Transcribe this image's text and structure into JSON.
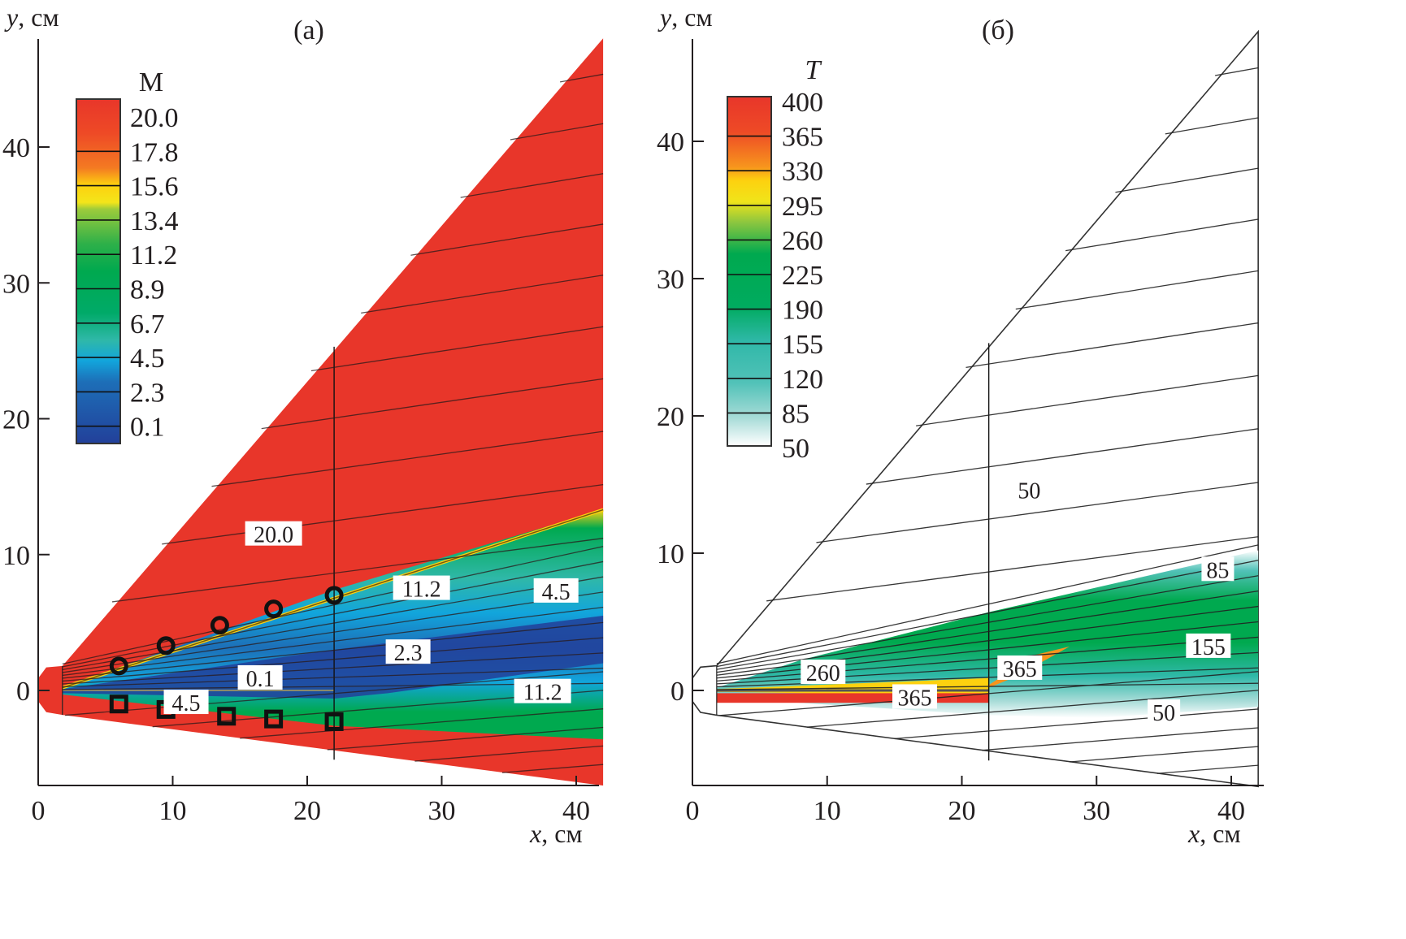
{
  "chart_data": [
    {
      "type": "heatmap",
      "panel_label": "(a)",
      "quantity": "M",
      "xlabel_var": "x",
      "xlabel_unit": ", см",
      "ylabel_var": "y",
      "ylabel_unit": ", см",
      "xlim": [
        0,
        42
      ],
      "ylim": [
        -7,
        48
      ],
      "xticks": [
        "0",
        "10",
        "20",
        "30",
        "40"
      ],
      "yticks": [
        "0",
        "10",
        "20",
        "30",
        "40"
      ],
      "xtick_values": [
        0,
        10,
        20,
        30,
        40
      ],
      "ytick_values": [
        0,
        10,
        20,
        30,
        40
      ],
      "colorbar": {
        "title": "M",
        "levels": [
          "20.0",
          "17.8",
          "15.6",
          "13.4",
          "11.2",
          "8.9",
          "6.7",
          "4.5",
          "2.3",
          "0.1"
        ],
        "colors": [
          "#e8362a",
          "#f26b24",
          "#fdd10f",
          "#7dc242",
          "#00a94f",
          "#00a95c",
          "#2fb8a8",
          "#12a5dc",
          "#1d6fb8",
          "#22409a"
        ]
      },
      "contour_labels": [
        {
          "text": "20.0",
          "x": 17.5,
          "y": 11.5
        },
        {
          "text": "11.2",
          "x": 28.5,
          "y": 7.5
        },
        {
          "text": "4.5",
          "x": 38.5,
          "y": 7.3
        },
        {
          "text": "2.3",
          "x": 27.5,
          "y": 2.8
        },
        {
          "text": "0.1",
          "x": 16.5,
          "y": 0.9
        },
        {
          "text": "4.5",
          "x": 11.0,
          "y": -0.9
        },
        {
          "text": "11.2",
          "x": 37.5,
          "y": -0.1
        }
      ],
      "markers_circles": [
        [
          6,
          1.8
        ],
        [
          9.5,
          3.3
        ],
        [
          13.5,
          4.8
        ],
        [
          17.5,
          6.0
        ],
        [
          22,
          7.0
        ]
      ],
      "markers_squares": [
        [
          6,
          -1.0
        ],
        [
          9.5,
          -1.4
        ],
        [
          14,
          -1.9
        ],
        [
          17.5,
          -2.1
        ],
        [
          22,
          -2.3
        ]
      ],
      "region_colors": {
        "freestream": "#e8362a",
        "shear_green": "#00a94f",
        "core_blue": "#22409a",
        "mid_blue": "#12a5dc"
      }
    },
    {
      "type": "heatmap",
      "panel_label": "(б)",
      "quantity": "T",
      "xlabel_var": "x",
      "xlabel_unit": ", см",
      "ylabel_var": "y",
      "ylabel_unit": ", см",
      "xlim": [
        0,
        42
      ],
      "ylim": [
        -7,
        48
      ],
      "xticks": [
        "0",
        "10",
        "20",
        "30",
        "40"
      ],
      "yticks": [
        "0",
        "10",
        "20",
        "30",
        "40"
      ],
      "xtick_values": [
        0,
        10,
        20,
        30,
        40
      ],
      "ytick_values": [
        0,
        10,
        20,
        30,
        40
      ],
      "colorbar": {
        "title": "T",
        "levels": [
          "400",
          "365",
          "330",
          "295",
          "260",
          "225",
          "190",
          "155",
          "120",
          "85",
          "50"
        ],
        "colors": [
          "#e8362a",
          "#f47a22",
          "#fdd10f",
          "#7dc242",
          "#00a94f",
          "#00a94f",
          "#00ad70",
          "#2fb8a8",
          "#52c2b8",
          "#a8dcd8",
          "#ffffff"
        ]
      },
      "contour_labels": [
        {
          "text": "50",
          "x": 25,
          "y": 14.6
        },
        {
          "text": "85",
          "x": 39,
          "y": 8.8
        },
        {
          "text": "155",
          "x": 38.3,
          "y": 3.2
        },
        {
          "text": "260",
          "x": 9.7,
          "y": 1.3
        },
        {
          "text": "365",
          "x": 24.3,
          "y": 1.6
        },
        {
          "text": "365",
          "x": 16.5,
          "y": -0.5
        },
        {
          "text": "50",
          "x": 35,
          "y": -1.6
        }
      ],
      "region_colors": {
        "background": "#ffffff",
        "green": "#00a94f",
        "teal": "#2fb8a8",
        "yellow": "#fdd10f",
        "red": "#e8362a"
      }
    }
  ]
}
